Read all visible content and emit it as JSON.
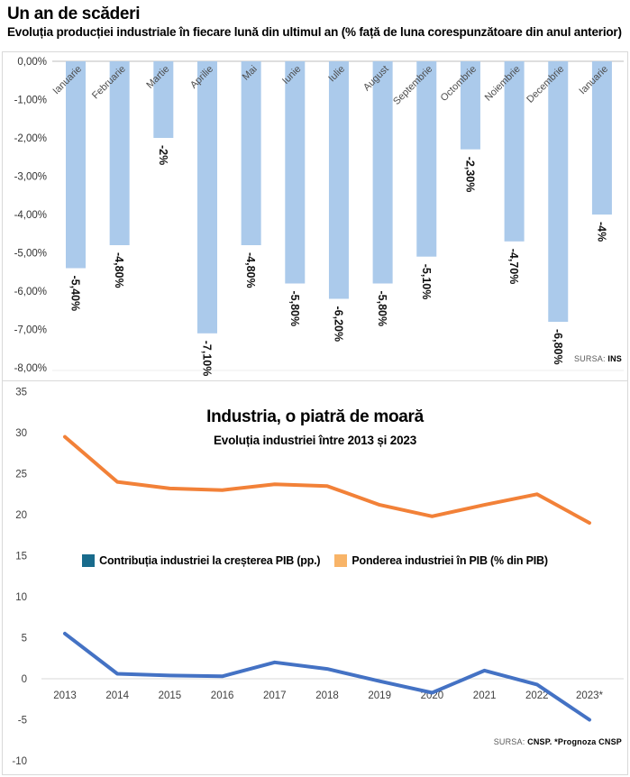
{
  "header": {
    "title": "Un an de scăderi",
    "subtitle": "Evoluția producției industriale în fiecare lună din ultimul an (% față de luna corespunzătoare din anul anterior)"
  },
  "chart_data": [
    {
      "type": "bar",
      "title": "Un an de scăderi",
      "categories": [
        "Ianuarie",
        "Februarie",
        "Martie",
        "Aprilie",
        "Mai",
        "Iunie",
        "Iulie",
        "August",
        "Septembrie",
        "Octombrie",
        "Noiembrie",
        "Decembrie",
        "Ianuarie"
      ],
      "values": [
        -5.4,
        -4.8,
        -2,
        -7.1,
        -4.8,
        -5.8,
        -6.2,
        -5.8,
        -5.1,
        -2.3,
        -4.7,
        -6.8,
        -4
      ],
      "value_labels": [
        "-5,40%",
        "-4,80%",
        "-2%",
        "-7,10%",
        "-4,80%",
        "-5,80%",
        "-6,20%",
        "-5,80%",
        "-5,10%",
        "-2,30%",
        "-4,70%",
        "-6,80%",
        "-4%"
      ],
      "ytick_labels": [
        "0,00%",
        "-1,00%",
        "-2,00%",
        "-3,00%",
        "-4,00%",
        "-5,00%",
        "-6,00%",
        "-7,00%",
        "-8,00%"
      ],
      "ylim": [
        -8,
        0
      ],
      "bar_color": "#ABCAEB",
      "source_prefix": "SURSA: ",
      "source": "INS"
    },
    {
      "type": "line",
      "title": "Industria, o piatră de moară",
      "subtitle": "Evoluția industriei între 2013 și 2023",
      "x": [
        "2013",
        "2014",
        "2015",
        "2016",
        "2017",
        "2018",
        "2019",
        "2020",
        "2021",
        "2022",
        "2023*"
      ],
      "series": [
        {
          "name": "Contribuția industriei la creșterea PIB (pp.)",
          "color": "#4472C4",
          "legend_color": "#186B8C",
          "values": [
            5.5,
            0.6,
            0.4,
            0.3,
            2,
            1.2,
            -0.3,
            -1.7,
            1,
            -0.7,
            -5
          ]
        },
        {
          "name": "Ponderea industriei în PIB (% din PIB)",
          "color": "#F28138",
          "legend_color": "#F8B468",
          "values": [
            29.5,
            24,
            23.2,
            23,
            23.7,
            23.5,
            21.2,
            19.8,
            21.2,
            22.5,
            19
          ]
        }
      ],
      "yticks": [
        35,
        30,
        25,
        20,
        15,
        10,
        5,
        0,
        -5,
        -10
      ],
      "ylim": [
        -10,
        35
      ],
      "grid": "zero-line-only",
      "legend_position": "middle-center",
      "source_prefix": "SURSA: ",
      "source": "CNSP",
      "source_note": ". *Prognoza CNSP"
    }
  ]
}
